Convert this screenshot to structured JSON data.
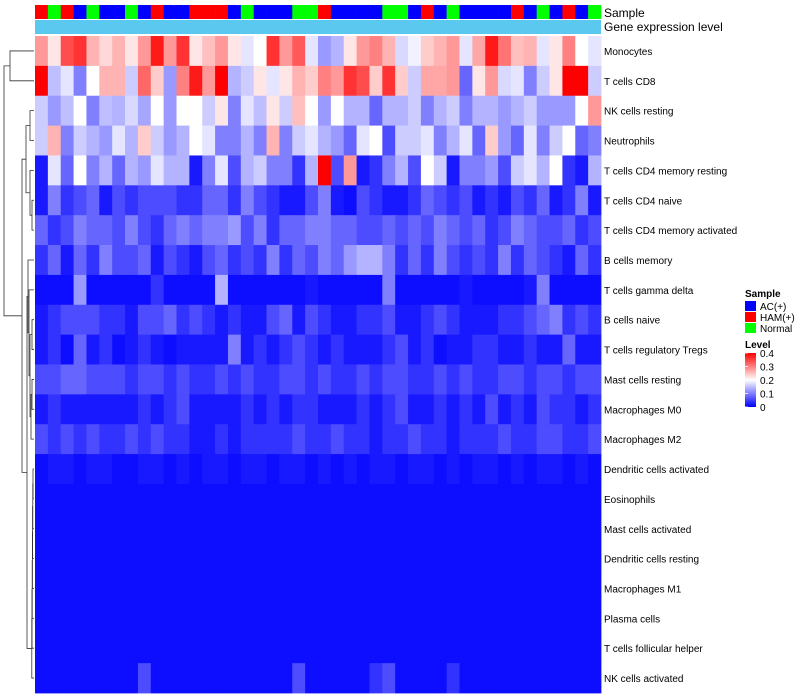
{
  "chart_data": {
    "type": "heatmap",
    "annotation_labels": [
      "Sample",
      "Gene expression level"
    ],
    "legend": {
      "sample_title": "Sample",
      "sample_entries": [
        {
          "label": "AC(+)",
          "color": "#0000ff"
        },
        {
          "label": "HAM(+)",
          "color": "#ff0000"
        },
        {
          "label": "Normal",
          "color": "#00ff00"
        }
      ],
      "level_title": "Level",
      "level_ticks": [
        "0.4",
        "0.3",
        "0.2",
        "0.1",
        "0"
      ],
      "level_range": [
        0,
        0.4
      ]
    },
    "colors": {
      "low": "#0000ff",
      "mid": "#ffffff",
      "high": "#ff0000",
      "gene_bar": "#5bc8f0"
    },
    "sample_groups": [
      "HAM(+)",
      "Normal",
      "HAM(+)",
      "AC(+)",
      "Normal",
      "AC(+)",
      "AC(+)",
      "Normal",
      "AC(+)",
      "HAM(+)",
      "AC(+)",
      "AC(+)",
      "HAM(+)",
      "HAM(+)",
      "HAM(+)",
      "AC(+)",
      "Normal",
      "AC(+)",
      "AC(+)",
      "AC(+)",
      "Normal",
      "Normal",
      "HAM(+)",
      "AC(+)",
      "AC(+)",
      "AC(+)",
      "AC(+)",
      "Normal",
      "Normal",
      "AC(+)",
      "HAM(+)",
      "AC(+)",
      "Normal",
      "AC(+)",
      "AC(+)",
      "AC(+)",
      "AC(+)",
      "HAM(+)",
      "AC(+)",
      "Normal",
      "AC(+)",
      "HAM(+)",
      "AC(+)",
      "Normal"
    ],
    "rows": [
      {
        "label": "Monocytes",
        "values": [
          0.28,
          0.22,
          0.34,
          0.36,
          0.26,
          0.23,
          0.26,
          0.22,
          0.28,
          0.38,
          0.28,
          0.36,
          0.22,
          0.25,
          0.28,
          0.22,
          0.18,
          0.2,
          0.36,
          0.28,
          0.33,
          0.18,
          0.12,
          0.14,
          0.22,
          0.28,
          0.3,
          0.26,
          0.17,
          0.19,
          0.24,
          0.26,
          0.28,
          0.18,
          0.27,
          0.38,
          0.31,
          0.25,
          0.26,
          0.18,
          0.22,
          0.3,
          0.2,
          0.18
        ]
      },
      {
        "label": "T cells CD8",
        "values": [
          0.4,
          0.15,
          0.18,
          0.1,
          0.2,
          0.26,
          0.26,
          0.16,
          0.32,
          0.24,
          0.12,
          0.3,
          0.38,
          0.28,
          0.4,
          0.14,
          0.16,
          0.22,
          0.18,
          0.22,
          0.26,
          0.24,
          0.3,
          0.28,
          0.36,
          0.34,
          0.24,
          0.36,
          0.24,
          0.16,
          0.27,
          0.27,
          0.28,
          0.08,
          0.22,
          0.28,
          0.17,
          0.18,
          0.1,
          0.16,
          0.22,
          0.4,
          0.4,
          0.16
        ]
      },
      {
        "label": "NK cells resting",
        "values": [
          0.16,
          0.12,
          0.15,
          0.2,
          0.1,
          0.15,
          0.14,
          0.17,
          0.13,
          0.2,
          0.12,
          0.2,
          0.2,
          0.16,
          0.22,
          0.1,
          0.18,
          0.15,
          0.22,
          0.16,
          0.25,
          0.2,
          0.12,
          0.2,
          0.14,
          0.14,
          0.08,
          0.14,
          0.14,
          0.16,
          0.1,
          0.14,
          0.16,
          0.1,
          0.14,
          0.14,
          0.12,
          0.14,
          0.16,
          0.12,
          0.12,
          0.12,
          0.2,
          0.28
        ]
      },
      {
        "label": "Neutrophils",
        "values": [
          0.16,
          0.26,
          0.1,
          0.16,
          0.14,
          0.12,
          0.18,
          0.14,
          0.24,
          0.16,
          0.12,
          0.14,
          0.2,
          0.18,
          0.1,
          0.1,
          0.14,
          0.1,
          0.26,
          0.1,
          0.16,
          0.18,
          0.14,
          0.12,
          0.08,
          0.18,
          0.2,
          0.06,
          0.16,
          0.16,
          0.18,
          0.1,
          0.14,
          0.18,
          0.08,
          0.24,
          0.12,
          0.08,
          0.18,
          0.1,
          0.16,
          0.2,
          0.08,
          0.1
        ]
      },
      {
        "label": "T cells CD4 memory resting",
        "values": [
          0.02,
          0.18,
          0.08,
          0.2,
          0.1,
          0.14,
          0.08,
          0.14,
          0.12,
          0.18,
          0.14,
          0.14,
          0.02,
          0.1,
          0.18,
          0.06,
          0.14,
          0.16,
          0.1,
          0.1,
          0.04,
          0.14,
          0.4,
          0.06,
          0.28,
          0.02,
          0.04,
          0.1,
          0.14,
          0.06,
          0.2,
          0.16,
          0.02,
          0.1,
          0.1,
          0.12,
          0.06,
          0.16,
          0.18,
          0.14,
          0.2,
          0.04,
          0.02,
          0.14
        ]
      },
      {
        "label": "T cells CD4 naive",
        "values": [
          0.02,
          0.1,
          0.04,
          0.06,
          0.08,
          0.02,
          0.06,
          0.04,
          0.06,
          0.06,
          0.06,
          0.04,
          0.04,
          0.08,
          0.08,
          0.04,
          0.1,
          0.06,
          0.04,
          0.02,
          0.02,
          0.06,
          0.1,
          0.02,
          0.01,
          0.06,
          0.04,
          0.02,
          0.02,
          0.04,
          0.08,
          0.06,
          0.04,
          0.06,
          0.02,
          0.04,
          0.02,
          0.06,
          0.04,
          0.08,
          0.02,
          0.04,
          0.1,
          0.02
        ]
      },
      {
        "label": "T cells CD4 memory activated",
        "values": [
          0.08,
          0.04,
          0.06,
          0.1,
          0.08,
          0.08,
          0.06,
          0.1,
          0.06,
          0.04,
          0.08,
          0.1,
          0.08,
          0.1,
          0.1,
          0.12,
          0.06,
          0.1,
          0.04,
          0.08,
          0.08,
          0.1,
          0.1,
          0.08,
          0.08,
          0.06,
          0.06,
          0.08,
          0.06,
          0.08,
          0.06,
          0.1,
          0.08,
          0.06,
          0.08,
          0.04,
          0.06,
          0.1,
          0.08,
          0.06,
          0.06,
          0.08,
          0.04,
          0.06
        ]
      },
      {
        "label": "B cells memory",
        "values": [
          0.04,
          0.08,
          0.02,
          0.08,
          0.04,
          0.1,
          0.06,
          0.06,
          0.08,
          0.02,
          0.06,
          0.04,
          0.02,
          0.06,
          0.08,
          0.04,
          0.06,
          0.04,
          0.1,
          0.04,
          0.08,
          0.06,
          0.1,
          0.08,
          0.12,
          0.14,
          0.14,
          0.1,
          0.04,
          0.08,
          0.04,
          0.1,
          0.06,
          0.04,
          0.06,
          0.04,
          0.1,
          0.04,
          0.08,
          0.06,
          0.04,
          0.02,
          0.08,
          0.04
        ]
      },
      {
        "label": "T cells gamma delta",
        "values": [
          0.01,
          0.01,
          0.01,
          0.12,
          0.01,
          0.01,
          0.01,
          0.01,
          0.01,
          0.04,
          0.01,
          0.01,
          0.01,
          0.01,
          0.14,
          0.01,
          0.01,
          0.01,
          0.01,
          0.01,
          0.01,
          0.02,
          0.01,
          0.01,
          0.01,
          0.01,
          0.01,
          0.1,
          0.01,
          0.01,
          0.01,
          0.01,
          0.01,
          0.02,
          0.01,
          0.01,
          0.01,
          0.01,
          0.02,
          0.1,
          0.01,
          0.01,
          0.01,
          0.01
        ]
      },
      {
        "label": "B cells naive",
        "values": [
          0.02,
          0.04,
          0.06,
          0.06,
          0.06,
          0.04,
          0.04,
          0.02,
          0.06,
          0.06,
          0.08,
          0.04,
          0.06,
          0.04,
          0.02,
          0.04,
          0.02,
          0.02,
          0.06,
          0.08,
          0.02,
          0.06,
          0.04,
          0.02,
          0.02,
          0.04,
          0.04,
          0.06,
          0.02,
          0.02,
          0.04,
          0.06,
          0.04,
          0.02,
          0.02,
          0.02,
          0.04,
          0.04,
          0.06,
          0.08,
          0.1,
          0.04,
          0.06,
          0.04
        ]
      },
      {
        "label": "T cells regulatory  Tregs",
        "values": [
          0.02,
          0.04,
          0.01,
          0.08,
          0.02,
          0.04,
          0.01,
          0.02,
          0.04,
          0.02,
          0.01,
          0.02,
          0.02,
          0.02,
          0.02,
          0.1,
          0.02,
          0.04,
          0.02,
          0.04,
          0.06,
          0.04,
          0.02,
          0.04,
          0.02,
          0.02,
          0.02,
          0.04,
          0.06,
          0.02,
          0.04,
          0.01,
          0.02,
          0.02,
          0.04,
          0.04,
          0.02,
          0.02,
          0.04,
          0.02,
          0.02,
          0.08,
          0.02,
          0.02
        ]
      },
      {
        "label": "Mast cells resting",
        "values": [
          0.06,
          0.06,
          0.08,
          0.08,
          0.06,
          0.06,
          0.06,
          0.04,
          0.06,
          0.06,
          0.04,
          0.06,
          0.04,
          0.04,
          0.06,
          0.04,
          0.06,
          0.04,
          0.04,
          0.06,
          0.06,
          0.04,
          0.06,
          0.04,
          0.04,
          0.06,
          0.04,
          0.06,
          0.06,
          0.04,
          0.04,
          0.06,
          0.04,
          0.06,
          0.04,
          0.04,
          0.06,
          0.06,
          0.04,
          0.06,
          0.06,
          0.04,
          0.06,
          0.06
        ]
      },
      {
        "label": "Macrophages M0",
        "values": [
          0.02,
          0.04,
          0.02,
          0.02,
          0.02,
          0.02,
          0.02,
          0.02,
          0.04,
          0.02,
          0.04,
          0.06,
          0.02,
          0.02,
          0.02,
          0.02,
          0.04,
          0.02,
          0.04,
          0.02,
          0.04,
          0.04,
          0.02,
          0.02,
          0.02,
          0.04,
          0.02,
          0.04,
          0.06,
          0.02,
          0.02,
          0.04,
          0.02,
          0.04,
          0.02,
          0.06,
          0.02,
          0.04,
          0.02,
          0.06,
          0.04,
          0.04,
          0.02,
          0.04
        ]
      },
      {
        "label": "Macrophages M2",
        "values": [
          0.06,
          0.04,
          0.06,
          0.04,
          0.06,
          0.04,
          0.04,
          0.06,
          0.04,
          0.06,
          0.04,
          0.04,
          0.02,
          0.02,
          0.04,
          0.02,
          0.04,
          0.04,
          0.04,
          0.04,
          0.06,
          0.04,
          0.04,
          0.06,
          0.04,
          0.04,
          0.02,
          0.04,
          0.04,
          0.06,
          0.04,
          0.04,
          0.02,
          0.04,
          0.04,
          0.04,
          0.06,
          0.04,
          0.04,
          0.06,
          0.06,
          0.04,
          0.04,
          0.06
        ]
      },
      {
        "label": "Dendritic cells activated",
        "values": [
          0.01,
          0.02,
          0.02,
          0.01,
          0.02,
          0.02,
          0.01,
          0.01,
          0.02,
          0.02,
          0.01,
          0.02,
          0.01,
          0.02,
          0.02,
          0.01,
          0.02,
          0.02,
          0.01,
          0.02,
          0.02,
          0.01,
          0.02,
          0.01,
          0.02,
          0.01,
          0.02,
          0.02,
          0.01,
          0.02,
          0.02,
          0.01,
          0.02,
          0.01,
          0.02,
          0.02,
          0.01,
          0.02,
          0.01,
          0.02,
          0.02,
          0.01,
          0.02,
          0.01
        ]
      },
      {
        "label": "Eosinophils",
        "values": [
          0.01,
          0.01,
          0.01,
          0.01,
          0.01,
          0.01,
          0.01,
          0.01,
          0.01,
          0.01,
          0.01,
          0.01,
          0.01,
          0.01,
          0.01,
          0.01,
          0.01,
          0.01,
          0.01,
          0.01,
          0.01,
          0.01,
          0.01,
          0.01,
          0.01,
          0.01,
          0.01,
          0.01,
          0.01,
          0.01,
          0.01,
          0.01,
          0.01,
          0.01,
          0.01,
          0.01,
          0.01,
          0.01,
          0.01,
          0.01,
          0.01,
          0.01,
          0.01,
          0.01
        ]
      },
      {
        "label": "Mast cells activated",
        "values": [
          0.01,
          0.01,
          0.01,
          0.01,
          0.01,
          0.01,
          0.01,
          0.01,
          0.01,
          0.01,
          0.01,
          0.01,
          0.01,
          0.01,
          0.01,
          0.01,
          0.01,
          0.01,
          0.01,
          0.01,
          0.01,
          0.01,
          0.01,
          0.01,
          0.01,
          0.01,
          0.01,
          0.01,
          0.01,
          0.01,
          0.01,
          0.01,
          0.01,
          0.01,
          0.01,
          0.01,
          0.01,
          0.01,
          0.01,
          0.01,
          0.01,
          0.01,
          0.01,
          0.01
        ]
      },
      {
        "label": "Dendritic cells resting",
        "values": [
          0.01,
          0.01,
          0.01,
          0.01,
          0.01,
          0.01,
          0.01,
          0.01,
          0.01,
          0.01,
          0.01,
          0.01,
          0.01,
          0.01,
          0.01,
          0.01,
          0.01,
          0.01,
          0.01,
          0.01,
          0.01,
          0.01,
          0.01,
          0.01,
          0.01,
          0.01,
          0.01,
          0.01,
          0.01,
          0.01,
          0.01,
          0.01,
          0.01,
          0.01,
          0.01,
          0.01,
          0.01,
          0.01,
          0.01,
          0.01,
          0.01,
          0.01,
          0.01,
          0.01
        ]
      },
      {
        "label": "Macrophages M1",
        "values": [
          0.01,
          0.01,
          0.01,
          0.01,
          0.01,
          0.01,
          0.01,
          0.01,
          0.01,
          0.01,
          0.01,
          0.01,
          0.01,
          0.01,
          0.01,
          0.01,
          0.01,
          0.01,
          0.01,
          0.01,
          0.01,
          0.01,
          0.01,
          0.01,
          0.01,
          0.01,
          0.01,
          0.01,
          0.01,
          0.01,
          0.01,
          0.01,
          0.01,
          0.01,
          0.01,
          0.01,
          0.01,
          0.01,
          0.01,
          0.01,
          0.01,
          0.01,
          0.01,
          0.01
        ]
      },
      {
        "label": "Plasma cells",
        "values": [
          0.01,
          0.01,
          0.01,
          0.01,
          0.01,
          0.01,
          0.01,
          0.01,
          0.01,
          0.01,
          0.01,
          0.01,
          0.01,
          0.01,
          0.01,
          0.01,
          0.01,
          0.01,
          0.01,
          0.01,
          0.01,
          0.01,
          0.01,
          0.01,
          0.01,
          0.01,
          0.01,
          0.01,
          0.01,
          0.01,
          0.01,
          0.01,
          0.01,
          0.01,
          0.01,
          0.01,
          0.01,
          0.01,
          0.01,
          0.01,
          0.01,
          0.01,
          0.01,
          0.01
        ]
      },
      {
        "label": "T cells follicular helper",
        "values": [
          0.01,
          0.01,
          0.01,
          0.01,
          0.01,
          0.01,
          0.01,
          0.01,
          0.01,
          0.01,
          0.01,
          0.01,
          0.01,
          0.01,
          0.01,
          0.01,
          0.01,
          0.01,
          0.01,
          0.01,
          0.01,
          0.01,
          0.01,
          0.01,
          0.01,
          0.01,
          0.01,
          0.01,
          0.01,
          0.01,
          0.01,
          0.01,
          0.01,
          0.01,
          0.01,
          0.01,
          0.01,
          0.01,
          0.01,
          0.01,
          0.01,
          0.01,
          0.01,
          0.01
        ]
      },
      {
        "label": "NK cells activated",
        "values": [
          0.01,
          0.01,
          0.01,
          0.01,
          0.01,
          0.01,
          0.01,
          0.01,
          0.06,
          0.01,
          0.01,
          0.01,
          0.01,
          0.01,
          0.01,
          0.01,
          0.01,
          0.01,
          0.01,
          0.01,
          0.06,
          0.01,
          0.01,
          0.01,
          0.01,
          0.01,
          0.04,
          0.06,
          0.01,
          0.01,
          0.01,
          0.01,
          0.04,
          0.01,
          0.01,
          0.01,
          0.01,
          0.01,
          0.01,
          0.01,
          0.01,
          0.01,
          0.01,
          0.01
        ]
      }
    ]
  }
}
